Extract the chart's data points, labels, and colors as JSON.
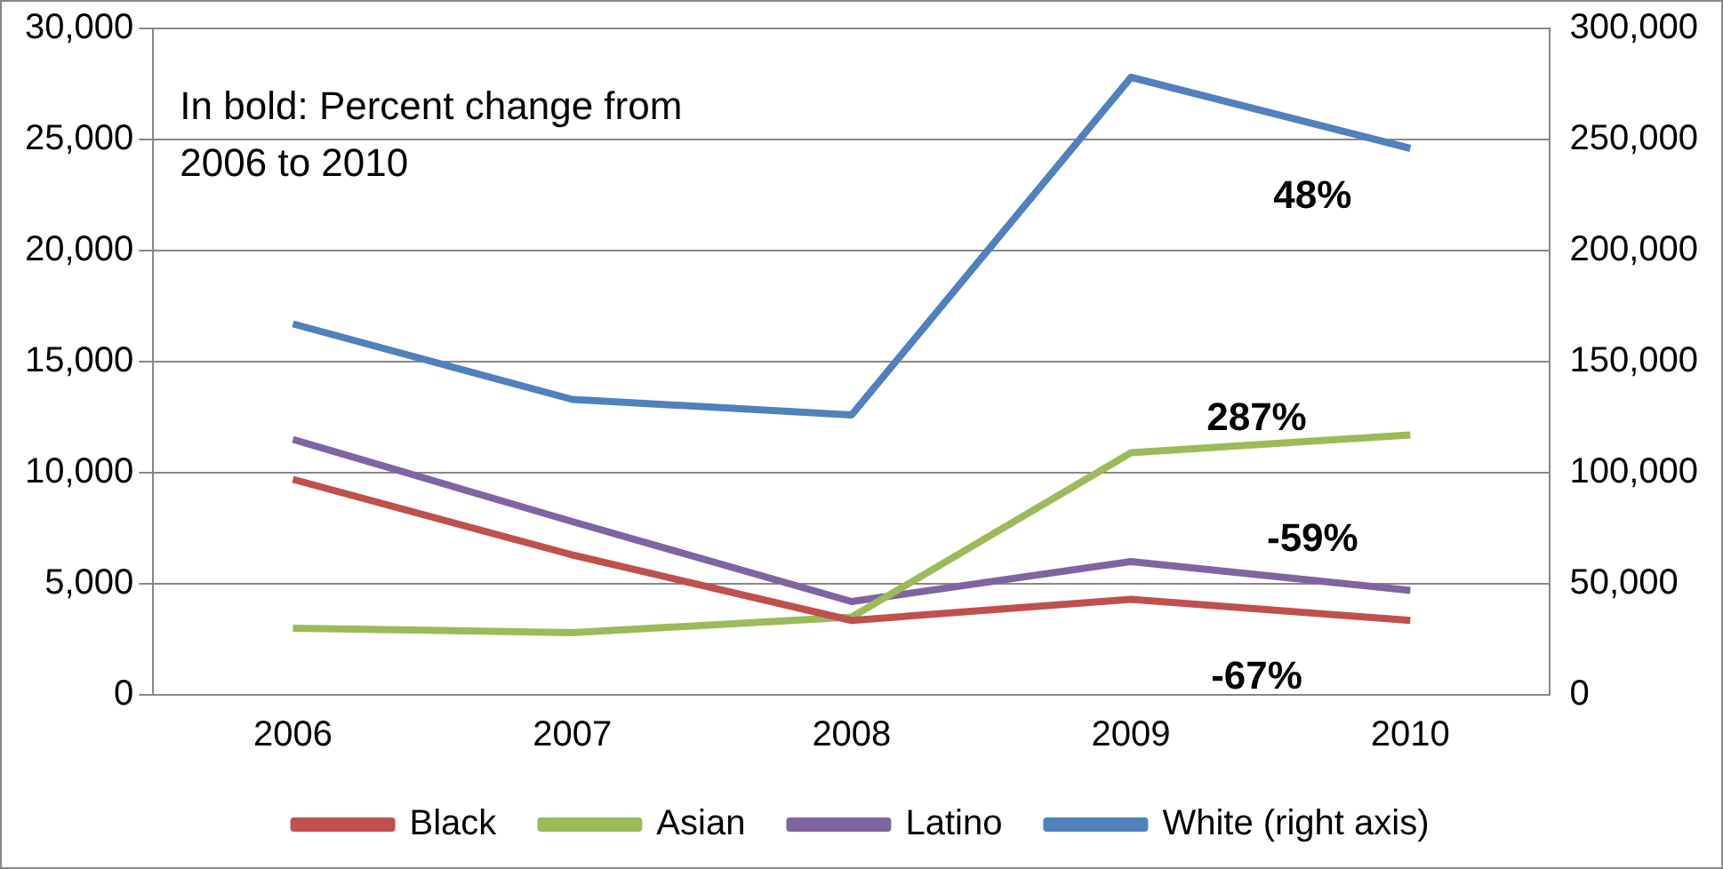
{
  "chart_data": {
    "type": "line",
    "categories": [
      "2006",
      "2007",
      "2008",
      "2009",
      "2010"
    ],
    "series": [
      {
        "name": "Black",
        "color": "#c0504d",
        "values": [
          9700,
          6300,
          3350,
          4300,
          3350
        ]
      },
      {
        "name": "Asian",
        "color": "#9bbb59",
        "values": [
          3000,
          2800,
          3500,
          10900,
          11700
        ]
      },
      {
        "name": "Latino",
        "color": "#8064a2",
        "values": [
          11500,
          7800,
          4200,
          6000,
          4700
        ]
      },
      {
        "name": "White (right axis)",
        "color": "#4f81bd",
        "axis": "y2",
        "values": [
          167000,
          133000,
          126000,
          278000,
          246000
        ]
      }
    ],
    "ylim": [
      0,
      30000
    ],
    "yticks": [
      0,
      {
        "value": 5000,
        "label": "5,000"
      },
      {
        "value": 10000,
        "label": "10,000"
      },
      {
        "value": 15000,
        "label": "15,000"
      },
      {
        "value": 20000,
        "label": "20,000"
      },
      {
        "value": 25000,
        "label": "25,000"
      },
      {
        "value": 30000,
        "label": "30,000"
      }
    ],
    "y2lim": [
      0,
      300000
    ],
    "y2ticks": [
      0,
      {
        "value": 50000,
        "label": "50,000"
      },
      {
        "value": 100000,
        "label": "100,000"
      },
      {
        "value": 150000,
        "label": "150,000"
      },
      {
        "value": 200000,
        "label": "200,000"
      },
      {
        "value": 250000,
        "label": "250,000"
      },
      {
        "value": 300000,
        "label": "300,000"
      }
    ],
    "grid": "y",
    "legend": "bottom",
    "marker": "none",
    "line_style": "solid",
    "annotations": [
      "In bold: Percent change from 2006 to 2010",
      "48%",
      "287%",
      "-59%",
      "-67%"
    ]
  }
}
